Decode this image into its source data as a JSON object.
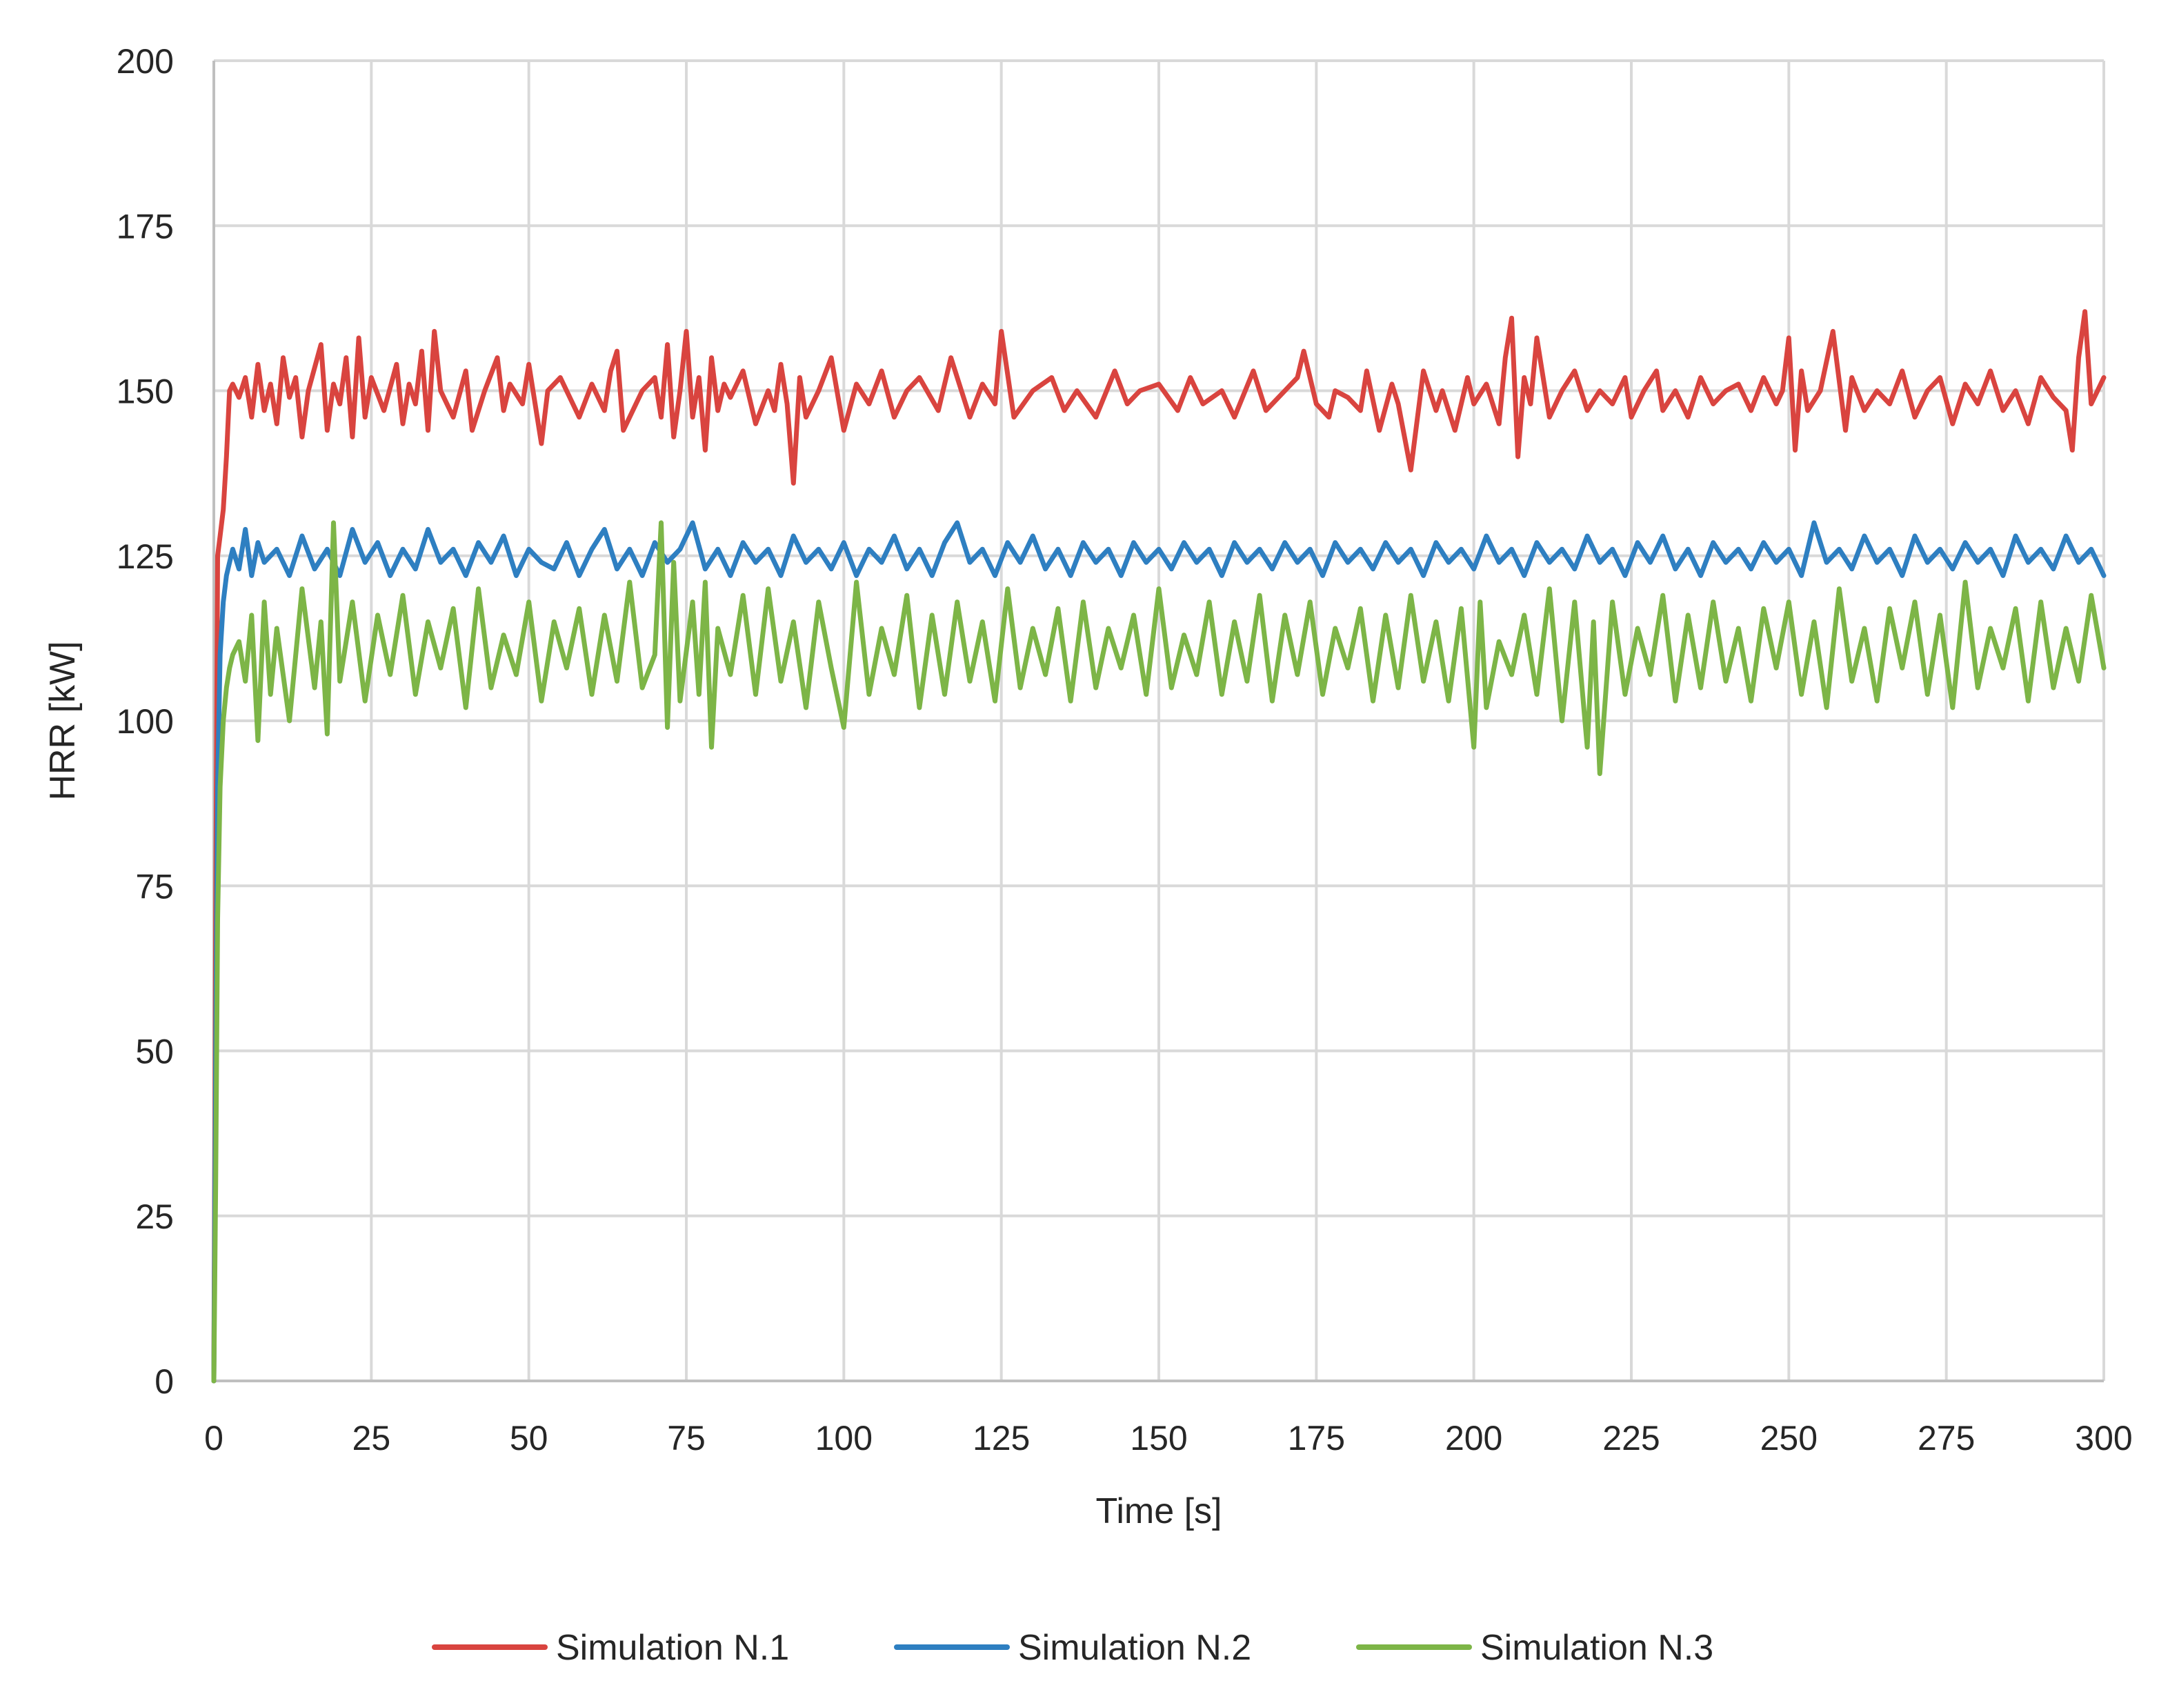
{
  "chart_data": {
    "type": "line",
    "title": "",
    "xlabel": "Time [s]",
    "ylabel": "HRR [kW]",
    "xlim": [
      0,
      300
    ],
    "ylim": [
      0,
      200
    ],
    "x_ticks": [
      0,
      25,
      50,
      75,
      100,
      125,
      150,
      175,
      200,
      225,
      250,
      275,
      300
    ],
    "y_ticks": [
      0,
      25,
      50,
      75,
      100,
      125,
      150,
      175,
      200
    ],
    "grid": true,
    "legend_position": "bottom",
    "noise_note_removed": true,
    "series": [
      {
        "name": "Simulation N.1",
        "color": "#d9443f",
        "x": [
          0,
          0.3,
          0.6,
          1,
          1.5,
          2,
          2.5,
          3,
          4,
          5,
          6,
          7,
          8,
          9,
          10,
          11,
          12,
          13,
          14,
          15,
          17,
          18,
          19,
          20,
          21,
          22,
          23,
          24,
          25,
          27,
          29,
          30,
          31,
          32,
          33,
          34,
          35,
          36,
          38,
          40,
          41,
          43,
          45,
          46,
          47,
          49,
          50,
          52,
          53,
          55,
          58,
          60,
          62,
          63,
          64,
          65,
          68,
          70,
          71,
          72,
          73,
          74,
          75,
          76,
          77,
          78,
          79,
          80,
          81,
          82,
          84,
          86,
          88,
          89,
          90,
          91,
          92,
          93,
          94,
          96,
          98,
          100,
          102,
          104,
          106,
          108,
          110,
          112,
          115,
          117,
          120,
          122,
          124,
          125,
          127,
          130,
          133,
          135,
          137,
          140,
          143,
          145,
          147,
          150,
          153,
          155,
          157,
          160,
          162,
          165,
          167,
          170,
          172,
          173,
          175,
          177,
          178,
          180,
          182,
          183,
          185,
          187,
          188,
          190,
          192,
          194,
          195,
          197,
          199,
          200,
          202,
          204,
          205,
          206,
          207,
          208,
          209,
          210,
          212,
          214,
          216,
          218,
          220,
          222,
          224,
          225,
          227,
          229,
          230,
          232,
          234,
          236,
          238,
          240,
          242,
          244,
          246,
          248,
          249,
          250,
          251,
          252,
          253,
          255,
          257,
          259,
          260,
          262,
          264,
          266,
          268,
          270,
          272,
          274,
          276,
          278,
          280,
          282,
          284,
          286,
          288,
          290,
          292,
          294,
          295,
          296,
          297,
          298,
          299,
          300
        ],
        "y": [
          0,
          70,
          125,
          128,
          132,
          140,
          150,
          151,
          149,
          152,
          146,
          154,
          147,
          151,
          145,
          155,
          149,
          152,
          143,
          150,
          157,
          144,
          151,
          148,
          155,
          143,
          158,
          146,
          152,
          147,
          154,
          145,
          151,
          148,
          156,
          144,
          159,
          150,
          146,
          153,
          144,
          150,
          155,
          147,
          151,
          148,
          154,
          142,
          150,
          152,
          146,
          151,
          147,
          153,
          156,
          144,
          150,
          152,
          146,
          157,
          143,
          150,
          159,
          146,
          152,
          141,
          155,
          147,
          151,
          149,
          153,
          145,
          150,
          147,
          154,
          148,
          136,
          152,
          146,
          150,
          155,
          144,
          151,
          148,
          153,
          146,
          150,
          152,
          147,
          155,
          146,
          151,
          148,
          159,
          146,
          150,
          152,
          147,
          150,
          146,
          153,
          148,
          150,
          151,
          147,
          152,
          148,
          150,
          146,
          153,
          147,
          150,
          152,
          156,
          148,
          146,
          150,
          149,
          147,
          153,
          144,
          151,
          148,
          138,
          153,
          147,
          150,
          144,
          152,
          148,
          151,
          145,
          155,
          161,
          140,
          152,
          148,
          158,
          146,
          150,
          153,
          147,
          150,
          148,
          152,
          146,
          150,
          153,
          147,
          150,
          146,
          152,
          148,
          150,
          151,
          147,
          152,
          148,
          150,
          158,
          141,
          153,
          147,
          150,
          159,
          144,
          152,
          147,
          150,
          148,
          153,
          146,
          150,
          152,
          145,
          151,
          148,
          153,
          147,
          150,
          145,
          152,
          149,
          147,
          141,
          155,
          162,
          148,
          150,
          152
        ]
      },
      {
        "name": "Simulation N.2",
        "color": "#2e7fc1",
        "x": [
          0,
          0.3,
          0.6,
          1,
          1.5,
          2,
          2.5,
          3,
          4,
          5,
          6,
          7,
          8,
          10,
          12,
          14,
          16,
          18,
          20,
          22,
          24,
          26,
          28,
          30,
          32,
          34,
          36,
          38,
          40,
          42,
          44,
          46,
          48,
          50,
          52,
          54,
          56,
          58,
          60,
          62,
          64,
          66,
          68,
          70,
          72,
          74,
          76,
          78,
          80,
          82,
          84,
          86,
          88,
          90,
          92,
          94,
          96,
          98,
          100,
          102,
          104,
          106,
          108,
          110,
          112,
          114,
          116,
          118,
          120,
          122,
          124,
          126,
          128,
          130,
          132,
          134,
          136,
          138,
          140,
          142,
          144,
          146,
          148,
          150,
          152,
          154,
          156,
          158,
          160,
          162,
          164,
          166,
          168,
          170,
          172,
          174,
          176,
          178,
          180,
          182,
          184,
          186,
          188,
          190,
          192,
          194,
          196,
          198,
          200,
          202,
          204,
          206,
          208,
          210,
          212,
          214,
          216,
          218,
          220,
          222,
          224,
          226,
          228,
          230,
          232,
          234,
          236,
          238,
          240,
          242,
          244,
          246,
          248,
          250,
          252,
          254,
          256,
          258,
          260,
          262,
          264,
          266,
          268,
          270,
          272,
          274,
          276,
          278,
          280,
          282,
          284,
          286,
          288,
          290,
          292,
          294,
          296,
          298,
          300
        ],
        "y": [
          0,
          50,
          90,
          110,
          118,
          122,
          124,
          126,
          123,
          129,
          122,
          127,
          124,
          126,
          122,
          128,
          123,
          126,
          122,
          129,
          124,
          127,
          122,
          126,
          123,
          129,
          124,
          126,
          122,
          127,
          124,
          128,
          122,
          126,
          124,
          123,
          127,
          122,
          126,
          129,
          123,
          126,
          122,
          127,
          124,
          126,
          130,
          123,
          126,
          122,
          127,
          124,
          126,
          122,
          128,
          124,
          126,
          123,
          127,
          122,
          126,
          124,
          128,
          123,
          126,
          122,
          127,
          130,
          124,
          126,
          122,
          127,
          124,
          128,
          123,
          126,
          122,
          127,
          124,
          126,
          122,
          127,
          124,
          126,
          123,
          127,
          124,
          126,
          122,
          127,
          124,
          126,
          123,
          127,
          124,
          126,
          122,
          127,
          124,
          126,
          123,
          127,
          124,
          126,
          122,
          127,
          124,
          126,
          123,
          128,
          124,
          126,
          122,
          127,
          124,
          126,
          123,
          128,
          124,
          126,
          122,
          127,
          124,
          128,
          123,
          126,
          122,
          127,
          124,
          126,
          123,
          127,
          124,
          126,
          122,
          130,
          124,
          126,
          123,
          128,
          124,
          126,
          122,
          128,
          124,
          126,
          123,
          127,
          124,
          126,
          122,
          128,
          124,
          126,
          123,
          128,
          124,
          126,
          122
        ]
      },
      {
        "name": "Simulation N.3",
        "color": "#7db547",
        "x": [
          0,
          0.3,
          0.6,
          1,
          1.5,
          2,
          2.5,
          3,
          4,
          5,
          6,
          7,
          8,
          9,
          10,
          12,
          14,
          16,
          17,
          18,
          19,
          20,
          22,
          24,
          26,
          28,
          30,
          32,
          34,
          36,
          38,
          40,
          42,
          44,
          46,
          48,
          50,
          52,
          54,
          56,
          58,
          60,
          62,
          64,
          66,
          68,
          70,
          71,
          72,
          73,
          74,
          76,
          77,
          78,
          79,
          80,
          82,
          84,
          86,
          88,
          90,
          92,
          94,
          96,
          98,
          100,
          102,
          104,
          106,
          108,
          110,
          112,
          114,
          116,
          118,
          120,
          122,
          124,
          126,
          128,
          130,
          132,
          134,
          136,
          138,
          140,
          142,
          144,
          146,
          148,
          150,
          152,
          154,
          156,
          158,
          160,
          162,
          164,
          166,
          168,
          170,
          172,
          174,
          176,
          178,
          180,
          182,
          184,
          186,
          188,
          190,
          192,
          194,
          196,
          198,
          200,
          201,
          202,
          204,
          206,
          208,
          210,
          212,
          214,
          216,
          218,
          219,
          220,
          222,
          224,
          226,
          228,
          230,
          232,
          234,
          236,
          238,
          240,
          242,
          244,
          246,
          248,
          250,
          252,
          254,
          256,
          258,
          260,
          262,
          264,
          266,
          268,
          270,
          272,
          274,
          276,
          278,
          280,
          282,
          284,
          286,
          288,
          290,
          292,
          294,
          296,
          298,
          300
        ],
        "y": [
          0,
          30,
          70,
          90,
          100,
          105,
          108,
          110,
          112,
          106,
          116,
          97,
          118,
          104,
          114,
          100,
          120,
          105,
          115,
          98,
          130,
          106,
          118,
          103,
          116,
          107,
          119,
          104,
          115,
          108,
          117,
          102,
          120,
          105,
          113,
          107,
          118,
          103,
          115,
          108,
          117,
          104,
          116,
          106,
          121,
          105,
          110,
          130,
          99,
          124,
          103,
          118,
          104,
          121,
          96,
          114,
          107,
          119,
          104,
          120,
          106,
          115,
          102,
          118,
          108,
          99,
          121,
          104,
          114,
          107,
          119,
          102,
          116,
          104,
          118,
          106,
          115,
          103,
          120,
          105,
          114,
          107,
          117,
          103,
          118,
          105,
          114,
          108,
          116,
          104,
          120,
          105,
          113,
          107,
          118,
          104,
          115,
          106,
          119,
          103,
          116,
          107,
          118,
          104,
          114,
          108,
          117,
          103,
          116,
          105,
          119,
          106,
          115,
          103,
          117,
          96,
          118,
          102,
          112,
          107,
          116,
          104,
          120,
          100,
          118,
          96,
          115,
          92,
          118,
          104,
          114,
          107,
          119,
          103,
          116,
          105,
          118,
          106,
          114,
          103,
          117,
          108,
          118,
          104,
          115,
          102,
          120,
          106,
          114,
          103,
          117,
          108,
          118,
          104,
          116,
          102,
          121,
          105,
          114,
          108,
          117,
          103,
          118,
          105,
          114,
          106,
          119,
          108
        ]
      }
    ]
  }
}
